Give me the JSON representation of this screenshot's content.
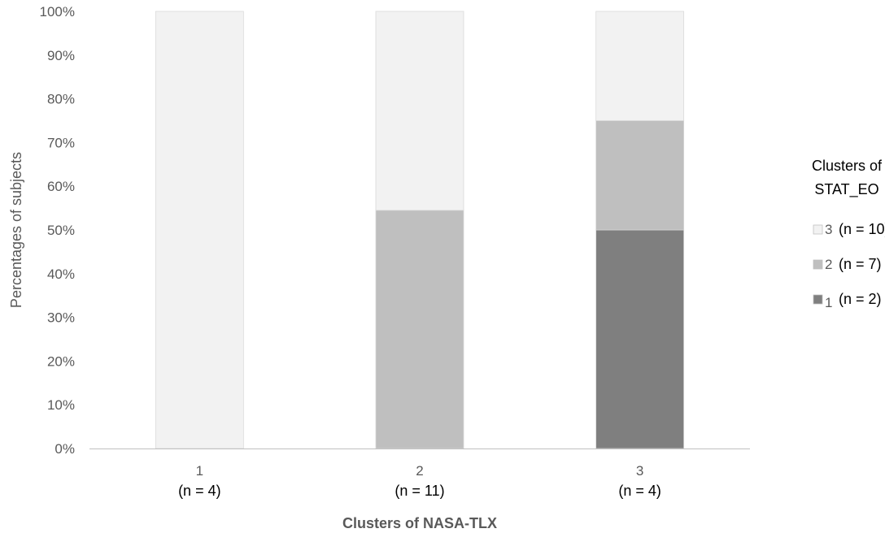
{
  "chart_data": {
    "type": "bar",
    "stacked": true,
    "percent": true,
    "xlabel": "Clusters of NASA-TLX",
    "ylabel": "Percentages of subjects",
    "ylim": [
      0,
      100
    ],
    "yticks": [
      "0%",
      "10%",
      "20%",
      "30%",
      "40%",
      "50%",
      "60%",
      "70%",
      "80%",
      "90%",
      "100%"
    ],
    "categories": [
      "1",
      "2",
      "3"
    ],
    "category_counts": [
      "(n = 4)",
      "(n = 11)",
      "(n = 4)"
    ],
    "series": [
      {
        "name": "1",
        "count_label": "(n = 2)",
        "color": "#7f7f7f",
        "values": [
          0,
          0,
          50
        ]
      },
      {
        "name": "2",
        "count_label": "(n = 7)",
        "color": "#bfbfbf",
        "values": [
          0,
          54.5,
          25
        ]
      },
      {
        "name": "3",
        "count_label": "(n = 10)",
        "color": "#f2f2f2",
        "values": [
          100,
          45.5,
          25
        ]
      }
    ],
    "legend": {
      "title_lines": [
        "Clusters of",
        "STAT_EO"
      ],
      "placement": "right",
      "order": [
        2,
        1,
        0
      ]
    },
    "grid": false
  }
}
